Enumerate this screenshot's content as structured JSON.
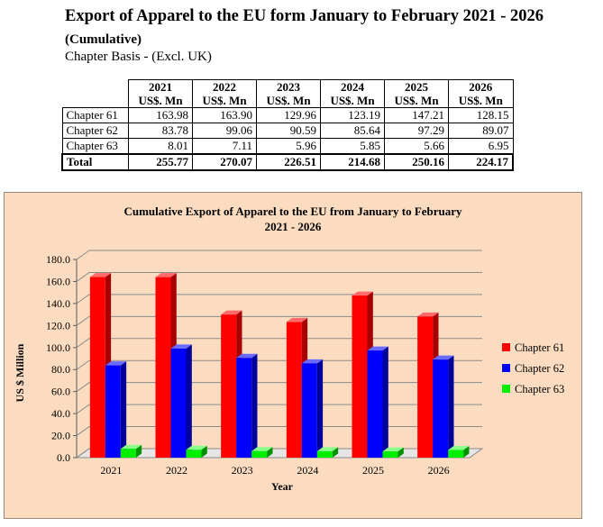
{
  "header": {
    "title": "Export of Apparel to the EU form January to February 2021 - 2026",
    "subtitle": "(Cumulative)",
    "basis": "Chapter Basis - (Excl. UK)"
  },
  "table": {
    "years": [
      "2021",
      "2022",
      "2023",
      "2024",
      "2025",
      "2026"
    ],
    "unit": "US$. Mn",
    "rows": [
      {
        "label": "Chapter 61",
        "values": [
          "163.98",
          "163.90",
          "129.96",
          "123.19",
          "147.21",
          "128.15"
        ]
      },
      {
        "label": "Chapter 62",
        "values": [
          "83.78",
          "99.06",
          "90.59",
          "85.64",
          "97.29",
          "89.07"
        ]
      },
      {
        "label": "Chapter 63",
        "values": [
          "8.01",
          "7.11",
          "5.96",
          "5.85",
          "5.66",
          "6.95"
        ]
      }
    ],
    "total": {
      "label": "Total",
      "values": [
        "255.77",
        "270.07",
        "226.51",
        "214.68",
        "250.16",
        "224.17"
      ]
    }
  },
  "chart_data": {
    "type": "bar",
    "title": "Cumulative Export of Apparel to the EU from January to February 2021 - 2026",
    "title_lines": [
      "Cumulative Export of Apparel to the EU from January to February",
      "2021 - 2026"
    ],
    "xlabel": "Year",
    "ylabel": "US $ Million",
    "categories": [
      "2021",
      "2022",
      "2023",
      "2024",
      "2025",
      "2026"
    ],
    "series": [
      {
        "name": "Chapter 61",
        "values": [
          163.98,
          163.9,
          129.96,
          123.19,
          147.21,
          128.15
        ],
        "color": "#ff0000",
        "side": "#a80000",
        "top": "#ff6a6a"
      },
      {
        "name": "Chapter 62",
        "values": [
          83.78,
          99.06,
          90.59,
          85.64,
          97.29,
          89.07
        ],
        "color": "#0000ff",
        "side": "#00009a",
        "top": "#6a6aff"
      },
      {
        "name": "Chapter 63",
        "values": [
          8.01,
          7.11,
          5.96,
          5.85,
          5.66,
          6.95
        ],
        "color": "#00ee00",
        "side": "#009000",
        "top": "#8aff8a"
      }
    ],
    "ylim": [
      0,
      180
    ],
    "yticks": [
      "0.0",
      "20.0",
      "40.0",
      "60.0",
      "80.0",
      "100.0",
      "120.0",
      "140.0",
      "160.0",
      "180.0"
    ],
    "grid": true,
    "legend": "right"
  }
}
